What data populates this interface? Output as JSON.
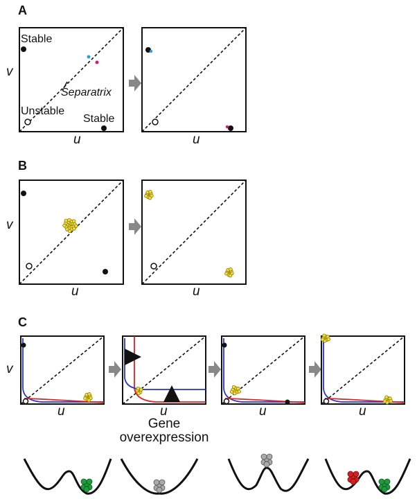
{
  "panel_a": {
    "label": "A",
    "y_label": "v",
    "x_labels": [
      "u",
      "u"
    ],
    "stable_top": "Stable",
    "stable_bottom": "Stable",
    "unstable": "Unstable",
    "separatrix": "Separatrix"
  },
  "panel_b": {
    "label": "B",
    "y_label": "v",
    "x_labels": [
      "u",
      "u"
    ]
  },
  "panel_c": {
    "label": "C",
    "y_label": "v",
    "x_labels": [
      "u",
      "u",
      "u",
      "u"
    ],
    "note": [
      "Gene",
      "overexpression"
    ]
  }
}
